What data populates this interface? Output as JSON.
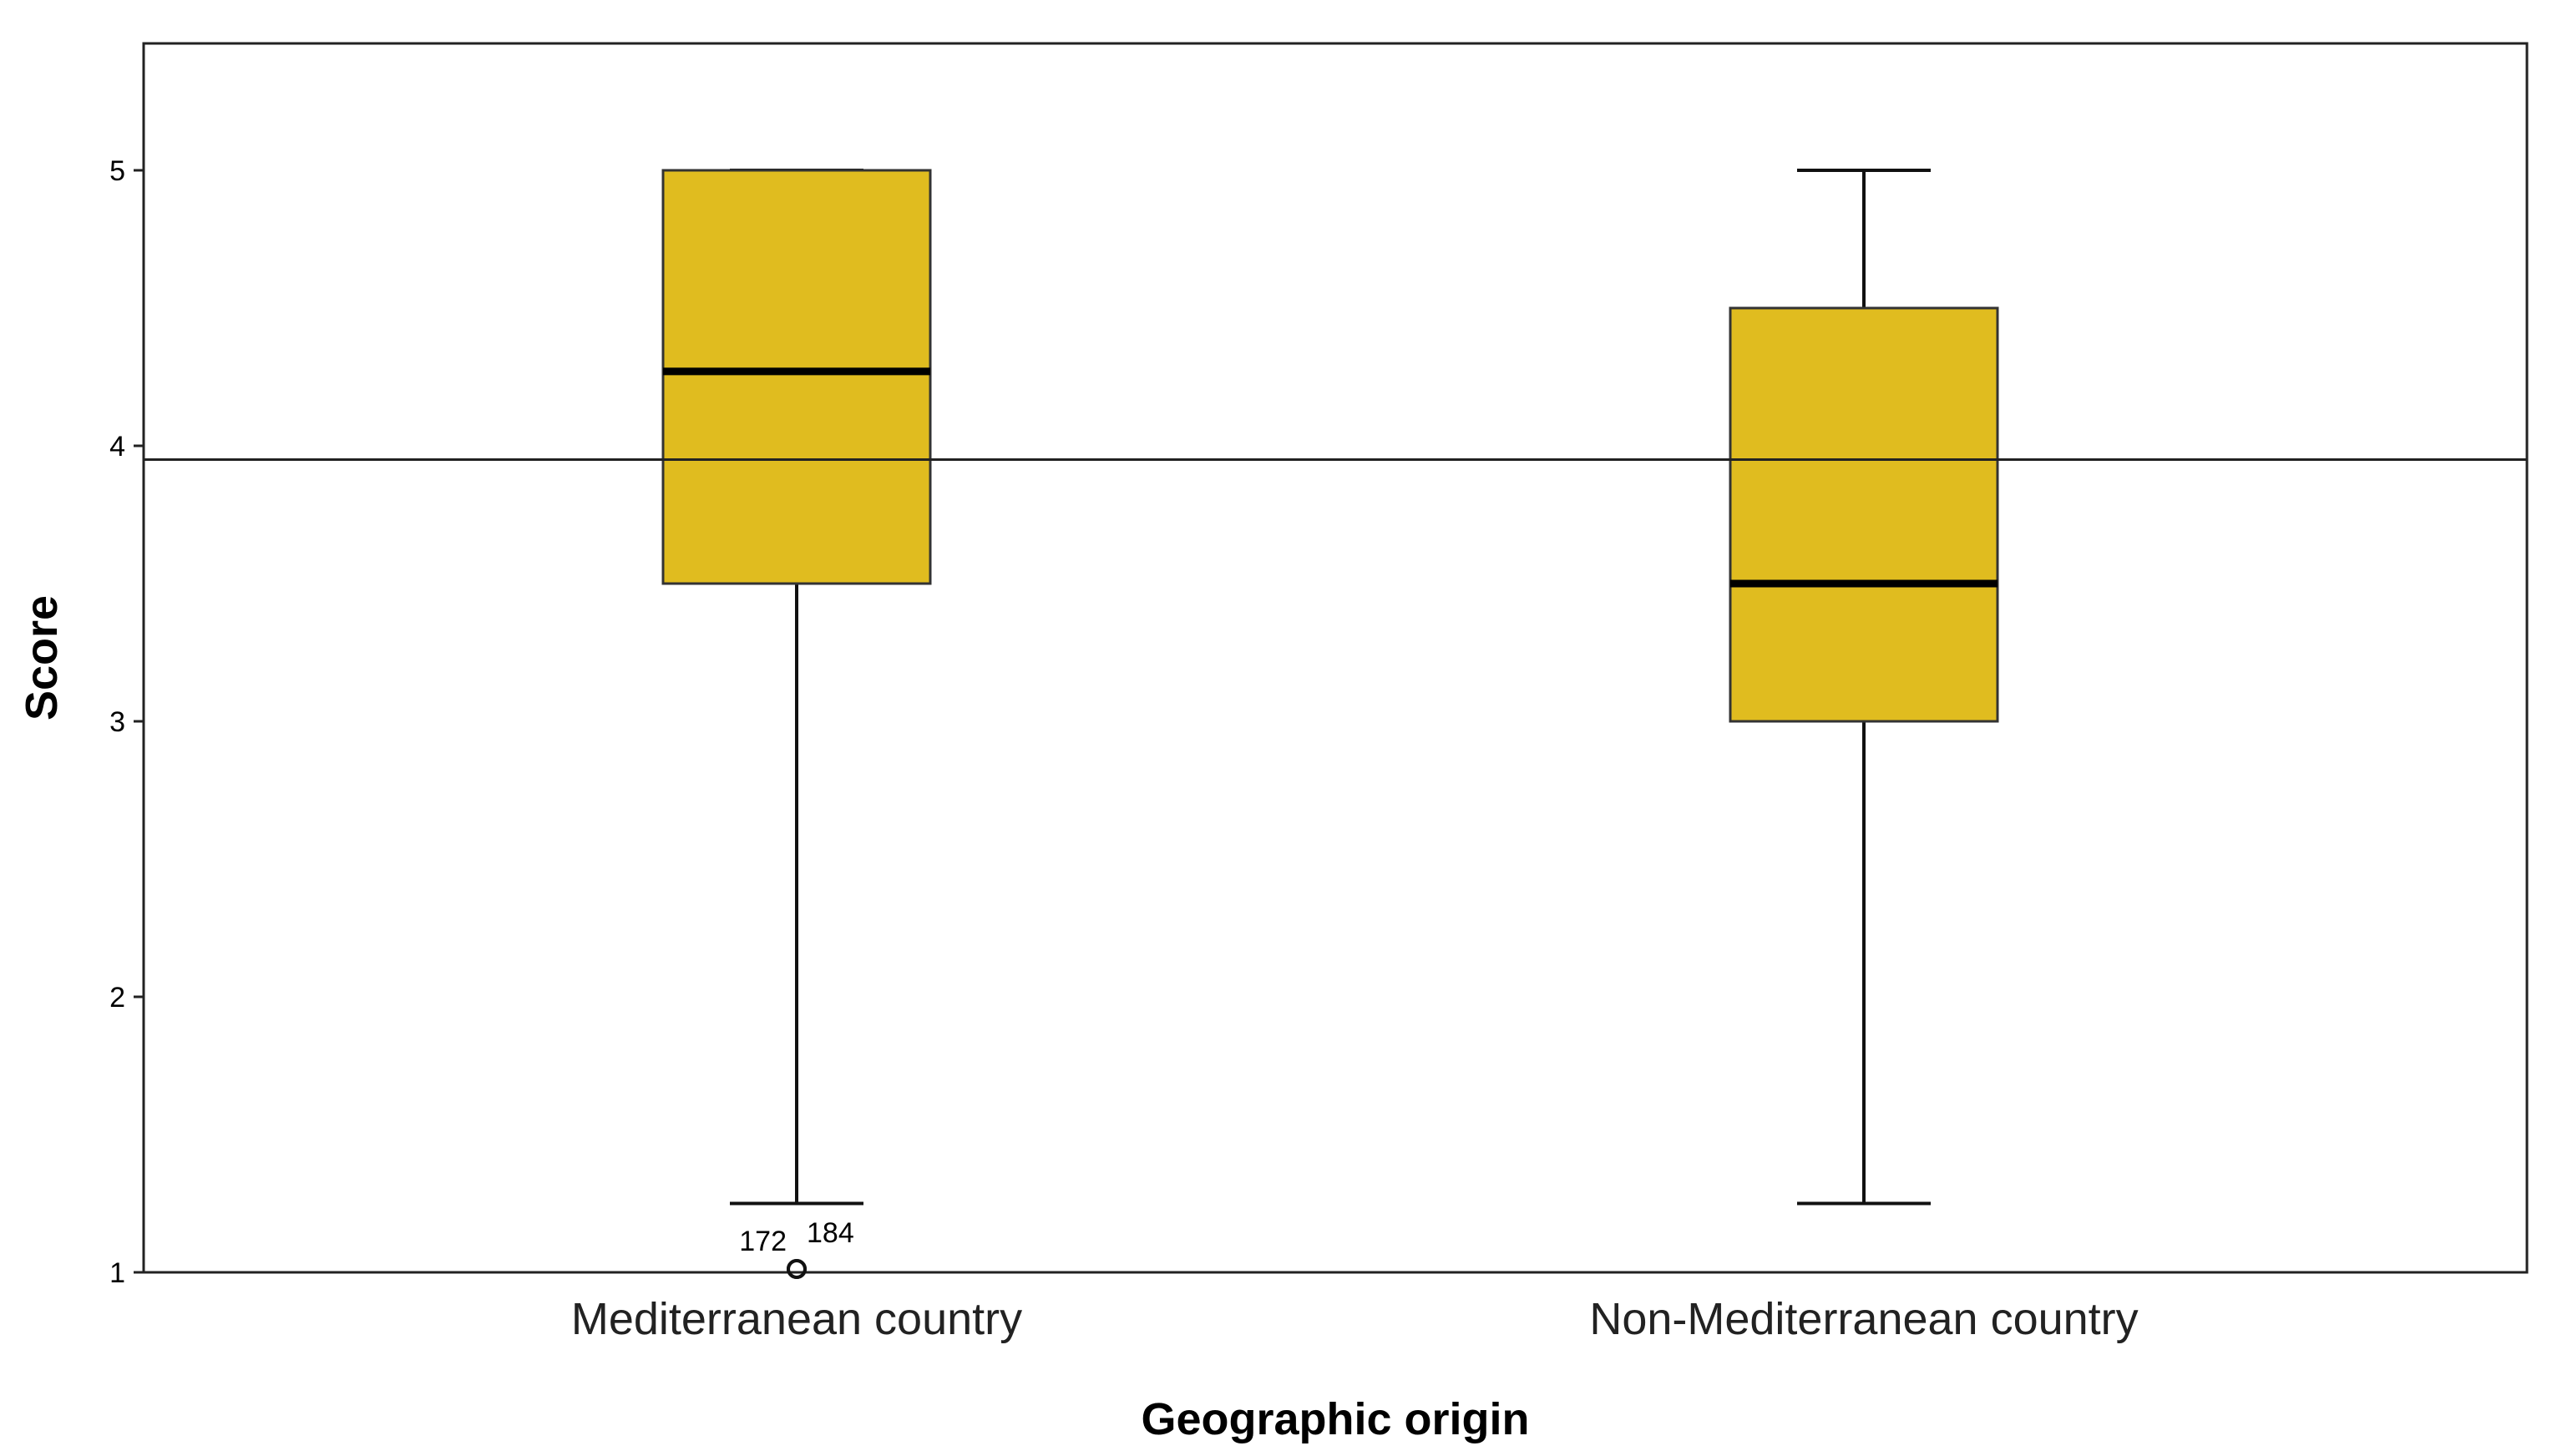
{
  "chart_data": {
    "type": "boxplot",
    "xlabel": "Geographic origin",
    "ylabel": "Score",
    "ylim": [
      1,
      5.5
    ],
    "yticks": [
      1,
      2,
      3,
      4,
      5
    ],
    "grid": false,
    "box_color": "#e0bc1f",
    "reference_line": {
      "y": 3.95
    },
    "categories": [
      "Mediterranean country",
      "Non-Mediterranean country"
    ],
    "boxes": [
      {
        "category": "Mediterranean country",
        "whisker_low": 1.25,
        "q1": 3.5,
        "median": 4.27,
        "q3": 5.0,
        "whisker_high": 5.0,
        "outliers": [
          {
            "value": 1.0,
            "label": "172"
          },
          {
            "value": 1.0,
            "label": "184"
          }
        ]
      },
      {
        "category": "Non-Mediterranean country",
        "whisker_low": 1.25,
        "q1": 3.0,
        "median": 3.5,
        "q3": 4.5,
        "whisker_high": 5.0,
        "outliers": []
      }
    ]
  }
}
